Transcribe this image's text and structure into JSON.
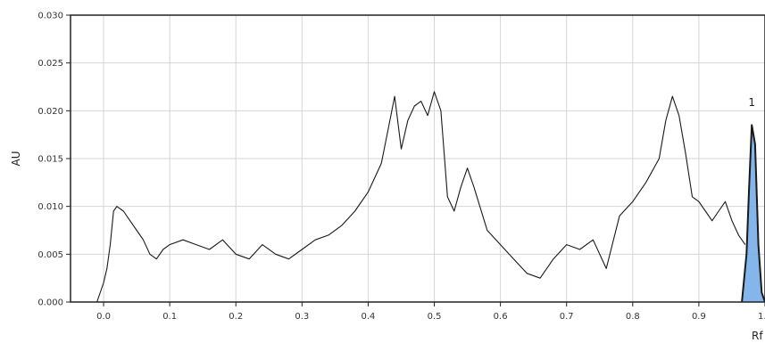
{
  "chart_data": {
    "type": "line",
    "title": "",
    "ylabel": "AU",
    "xlabel": "Rf",
    "xlim": [
      -0.05,
      1.0
    ],
    "ylim": [
      0.0,
      0.03
    ],
    "x_ticks": [
      0.0,
      0.1,
      0.2,
      0.3,
      0.4,
      0.5,
      0.6,
      0.7,
      0.8,
      0.9,
      1.0
    ],
    "x_tick_labels": [
      "0.0",
      "0.1",
      "0.2",
      "0.3",
      "0.4",
      "0.5",
      "0.6",
      "0.7",
      "0.8",
      "0.9",
      "1.0"
    ],
    "y_ticks": [
      0.0,
      0.005,
      0.01,
      0.015,
      0.02,
      0.025,
      0.03
    ],
    "y_tick_labels": [
      "0.000",
      "0.005",
      "0.010",
      "0.015",
      "0.020",
      "0.025",
      "0.030"
    ],
    "grid": true,
    "series": [
      {
        "color": "#1a1a1a",
        "x": [
          -0.05,
          -0.01,
          0.0,
          0.005,
          0.01,
          0.015,
          0.02,
          0.03,
          0.04,
          0.05,
          0.06,
          0.07,
          0.08,
          0.09,
          0.1,
          0.12,
          0.14,
          0.16,
          0.18,
          0.2,
          0.22,
          0.24,
          0.26,
          0.28,
          0.3,
          0.32,
          0.34,
          0.36,
          0.38,
          0.4,
          0.42,
          0.43,
          0.44,
          0.45,
          0.46,
          0.47,
          0.48,
          0.49,
          0.5,
          0.51,
          0.52,
          0.53,
          0.54,
          0.55,
          0.56,
          0.58,
          0.6,
          0.62,
          0.64,
          0.66,
          0.68,
          0.7,
          0.72,
          0.74,
          0.76,
          0.78,
          0.8,
          0.82,
          0.84,
          0.85,
          0.86,
          0.87,
          0.88,
          0.89,
          0.9,
          0.91,
          0.92,
          0.93,
          0.94,
          0.95,
          0.96,
          0.97
        ],
        "y": [
          0.0,
          0.0,
          0.002,
          0.0035,
          0.006,
          0.0095,
          0.01,
          0.0095,
          0.0085,
          0.0075,
          0.0065,
          0.005,
          0.0045,
          0.0055,
          0.006,
          0.0065,
          0.006,
          0.0055,
          0.0065,
          0.005,
          0.0045,
          0.006,
          0.005,
          0.0045,
          0.0055,
          0.0065,
          0.007,
          0.008,
          0.0095,
          0.0115,
          0.0145,
          0.018,
          0.0215,
          0.016,
          0.019,
          0.0205,
          0.021,
          0.0195,
          0.022,
          0.02,
          0.011,
          0.0095,
          0.012,
          0.014,
          0.012,
          0.0075,
          0.006,
          0.0045,
          0.003,
          0.0025,
          0.0045,
          0.006,
          0.0055,
          0.0065,
          0.0035,
          0.009,
          0.0105,
          0.0125,
          0.015,
          0.019,
          0.0215,
          0.0195,
          0.0155,
          0.011,
          0.0105,
          0.0095,
          0.0085,
          0.0095,
          0.0105,
          0.0085,
          0.007,
          0.006
        ]
      },
      {
        "color": "#1a1a1a",
        "fill": "#6fa8e8",
        "x": [
          0.965,
          0.972,
          0.976,
          0.98,
          0.985,
          0.99,
          0.995,
          1.0
        ],
        "y": [
          0.0,
          0.005,
          0.012,
          0.0185,
          0.0165,
          0.006,
          0.001,
          0.0
        ]
      }
    ],
    "annotations": [
      {
        "text": "1",
        "x": 0.98,
        "y": 0.0205
      }
    ]
  }
}
